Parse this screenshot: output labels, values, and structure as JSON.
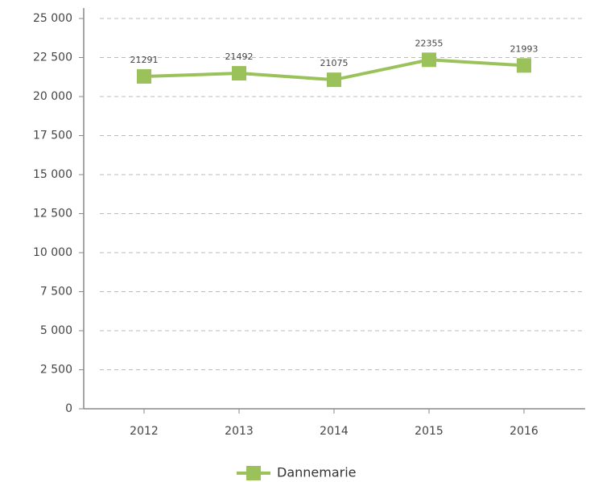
{
  "chart_data": {
    "type": "line",
    "categories": [
      "2012",
      "2013",
      "2014",
      "2015",
      "2016"
    ],
    "series": [
      {
        "name": "Dannemarie",
        "color": "#9bc25a",
        "values": [
          21291,
          21492,
          21075,
          22355,
          21993
        ]
      }
    ],
    "ylim": [
      0,
      25000
    ],
    "yticks": [
      0,
      {
        "value": 2500,
        "label": "2 500"
      },
      {
        "value": 5000,
        "label": "5 000"
      },
      {
        "value": 7500,
        "label": "7 500"
      },
      {
        "value": 10000,
        "label": "10 000"
      },
      {
        "value": 12500,
        "label": "12 500"
      },
      {
        "value": 15000,
        "label": "15 000"
      },
      {
        "value": 17500,
        "label": "17 500"
      },
      {
        "value": 20000,
        "label": "20 000"
      },
      {
        "value": 22500,
        "label": "22 500"
      },
      {
        "value": 25000,
        "label": "25 000"
      }
    ],
    "grid": true,
    "legend": "bottom",
    "data_labels": true
  }
}
